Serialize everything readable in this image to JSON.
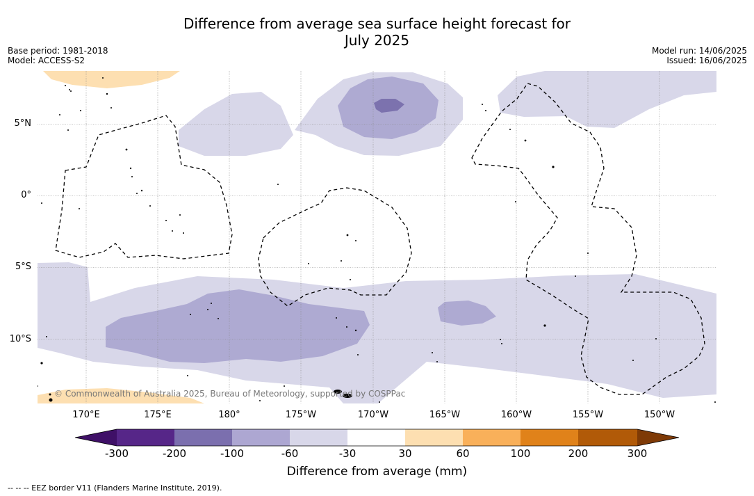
{
  "title_line1": "Difference from average sea surface height forecast for",
  "title_line2": "July 2025",
  "meta_left": [
    "Base period: 1981-2018",
    "Model: ACCESS-S2"
  ],
  "meta_right": [
    "Model run: 14/06/2025",
    "Issued: 16/06/2025"
  ],
  "lat_labels": [
    "5°N",
    "0°",
    "5°S",
    "10°S"
  ],
  "lon_labels": [
    "170°E",
    "175°E",
    "180°",
    "175°W",
    "170°W",
    "165°W",
    "160°W",
    "155°W",
    "150°W"
  ],
  "copyright": "© Commonwealth of Australia 2025, Bureau of Meteorology, supported by COSPPac",
  "colorbar": {
    "label": "Difference from average (mm)",
    "ticks": [
      "-300",
      "-200",
      "-100",
      "-60",
      "-30",
      "30",
      "60",
      "100",
      "200",
      "300"
    ],
    "colors": [
      "#3f1067",
      "#562688",
      "#7b6fae",
      "#ada7d2",
      "#d8d7e9",
      "#ffffff",
      "#fddfb1",
      "#f9b05a",
      "#e0821a",
      "#b15a08",
      "#7e3a06"
    ]
  },
  "legend_text": "--  --  -- EEZ border V11 (Flanders Marine Institute, 2019)."
}
